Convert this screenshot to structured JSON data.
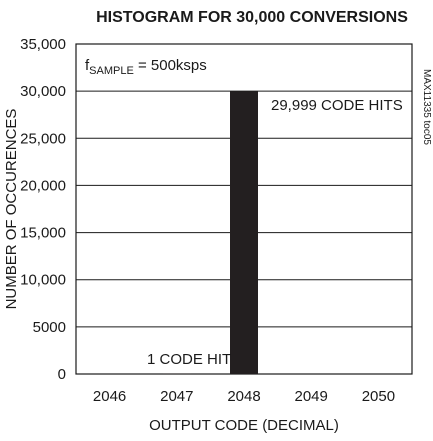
{
  "chart_data": {
    "type": "bar",
    "title": "HISTOGRAM FOR 30,000 CONVERSIONS",
    "xlabel": "OUTPUT CODE (DECIMAL)",
    "ylabel": "NUMBER OF OCCURENCES",
    "categories": [
      "2046",
      "2047",
      "2048",
      "2049",
      "2050"
    ],
    "values": [
      0,
      1,
      29999,
      0,
      0
    ],
    "ylim": [
      0,
      35000
    ],
    "yticks": [
      0,
      5000,
      10000,
      15000,
      20000,
      25000,
      30000,
      35000
    ],
    "ytick_labels": [
      "0",
      "5000",
      "10,000",
      "15,000",
      "20,000",
      "25,000",
      "30,000",
      "35,000"
    ],
    "grid": "horizontal",
    "legend": "none",
    "annotations": {
      "sample_rate": {
        "f": "f",
        "sub": "SAMPLE",
        "rest": " = 500ksps"
      },
      "big_bin": "29,999 CODE HITS",
      "small_bin": "1 CODE HIT"
    },
    "figure_id": "MAX11335 toc05",
    "bar_color": "#231f20"
  }
}
